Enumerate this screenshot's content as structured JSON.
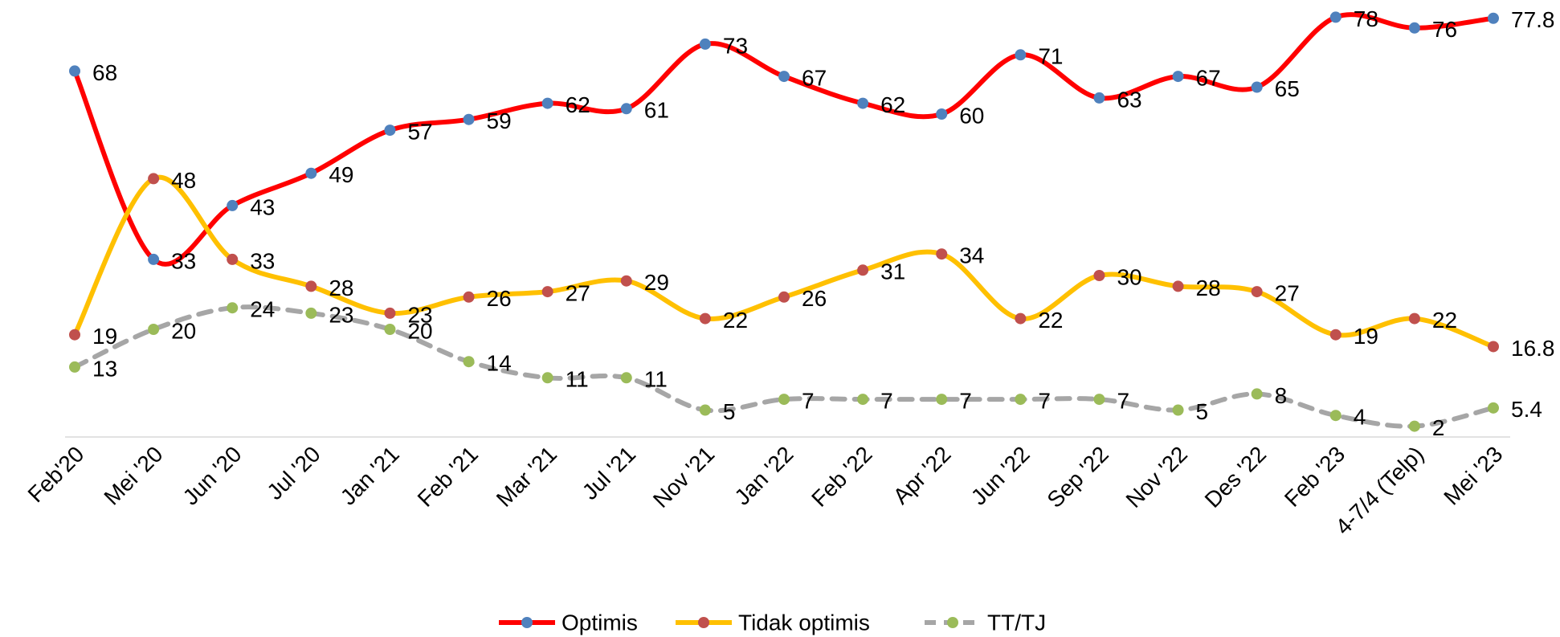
{
  "chart_data": {
    "type": "line",
    "categories": [
      "Feb'20",
      "Mei '20",
      "Jun '20",
      "Jul '20",
      "Jan '21",
      "Feb '21",
      "Mar '21",
      "Jul '21",
      "Nov '21",
      "Jan '22",
      "Feb '22",
      "Apr '22",
      "Jun '22",
      "Sep '22",
      "Nov '22",
      "Des '22",
      "Feb '23",
      "4-7/4 (Telp)",
      "Mei '23"
    ],
    "series": [
      {
        "name": "Optimis",
        "color": "#ff0000",
        "marker_color": "#4f81bd",
        "dashed": false,
        "values": [
          68,
          33,
          43,
          49,
          57,
          59,
          62,
          61,
          73,
          67,
          62,
          60,
          71,
          63,
          67,
          65,
          78,
          76,
          77.8
        ]
      },
      {
        "name": "Tidak optimis",
        "color": "#ffc000",
        "marker_color": "#c0504d",
        "dashed": false,
        "values": [
          19,
          48,
          33,
          28,
          23,
          26,
          27,
          29,
          22,
          26,
          31,
          34,
          22,
          30,
          28,
          27,
          19,
          22,
          16.8
        ]
      },
      {
        "name": "TT/TJ",
        "color": "#a6a6a6",
        "marker_color": "#9bbb59",
        "dashed": true,
        "values": [
          13,
          20,
          24,
          23,
          20,
          14,
          11,
          11,
          5,
          7,
          7,
          7,
          7,
          7,
          5,
          8,
          4,
          2,
          5.4
        ]
      }
    ],
    "ylim": [
      0,
      80
    ],
    "smooth": true,
    "legend": "bottom"
  }
}
